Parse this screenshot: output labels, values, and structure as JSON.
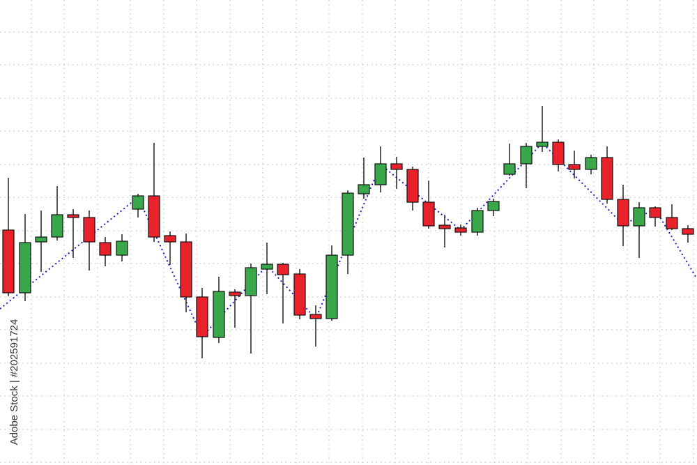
{
  "chart_data": {
    "type": "candlestick",
    "watermark": "Adobe Stock | #202591724",
    "xlim": [
      0,
      1000
    ],
    "ylim": [
      0,
      667
    ],
    "grid": true,
    "xticks": [
      45,
      92,
      140,
      187,
      235,
      282,
      330,
      377,
      425,
      472,
      520,
      567,
      615,
      662,
      710,
      757,
      805,
      852,
      900,
      947,
      995
    ],
    "yticks": [
      4,
      51,
      99,
      146,
      194,
      241,
      289,
      336,
      384,
      431,
      479,
      526,
      574,
      621
    ],
    "up_color": "#3aa84a",
    "down_color": "#e8212b",
    "x": [
      12,
      36,
      59,
      82,
      105,
      128,
      151,
      175,
      198,
      221,
      244,
      267,
      290,
      314,
      337,
      360,
      383,
      406,
      430,
      453,
      476,
      499,
      522,
      546,
      569,
      592,
      615,
      638,
      661,
      685,
      708,
      731,
      755,
      778,
      801,
      824,
      848,
      871,
      894,
      917,
      940,
      964,
      987
    ],
    "open": [
      337,
      247,
      320,
      327,
      359,
      355,
      319,
      301,
      367,
      386,
      329,
      320,
      241,
      183,
      248,
      243,
      281,
      288,
      274,
      216,
      210,
      301,
      389,
      402,
      432,
      424,
      377,
      344,
      340,
      334,
      365,
      417,
      432,
      457,
      463,
      431,
      424,
      441,
      381,
      343,
      369,
      355,
      339
    ],
    "high": [
      412,
      360,
      365,
      400,
      367,
      365,
      327,
      331,
      389,
      462,
      335,
      332,
      254,
      270,
      252,
      289,
      319,
      290,
      281,
      229,
      315,
      394,
      441,
      457,
      442,
      428,
      408,
      359,
      345,
      369,
      382,
      461,
      462,
      515,
      467,
      451,
      445,
      457,
      402,
      377,
      371,
      374,
      344
    ],
    "low": [
      242,
      235,
      277,
      322,
      297,
      279,
      285,
      292,
      355,
      320,
      287,
      219,
      153,
      175,
      197,
      160,
      245,
      203,
      209,
      170,
      207,
      274,
      382,
      391,
      396,
      365,
      339,
      312,
      329,
      329,
      357,
      415,
      397,
      449,
      421,
      411,
      417,
      375,
      314,
      297,
      342,
      337,
      319
    ],
    "close": [
      247,
      319,
      327,
      359,
      355,
      320,
      301,
      321,
      386,
      327,
      320,
      241,
      184,
      249,
      243,
      283,
      288,
      273,
      215,
      210,
      301,
      390,
      402,
      432,
      424,
      377,
      343,
      339,
      334,
      365,
      378,
      432,
      457,
      463,
      431,
      424,
      441,
      381,
      343,
      369,
      355,
      339,
      331
    ],
    "trend": {
      "color": "#1a1acc",
      "x": [
        0,
        198,
        290,
        383,
        453,
        546,
        661,
        778,
        894,
        940,
        1000
      ],
      "values": [
        224,
        384,
        184,
        286,
        210,
        431,
        337,
        462,
        345,
        367,
        267
      ]
    }
  }
}
